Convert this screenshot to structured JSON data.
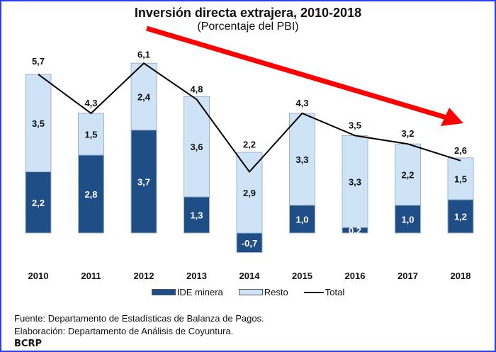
{
  "chart_data": {
    "type": "bar",
    "stacked": true,
    "title": "Inversión directa extrajera, 2010-2018",
    "subtitle": "(Porcentaje del PBI)",
    "categories": [
      "2010",
      "2011",
      "2012",
      "2013",
      "2014",
      "2015",
      "2016",
      "2017",
      "2018"
    ],
    "series": [
      {
        "name": "IDE minera",
        "type": "bar",
        "color": "#1f4e87",
        "values": [
          2.2,
          2.8,
          3.7,
          1.3,
          -0.7,
          1.0,
          0.2,
          1.0,
          1.2
        ],
        "labels": [
          "2,2",
          "2,8",
          "3,7",
          "1,3",
          "-0,7",
          "1,0",
          "0,2",
          "1,0",
          "1,2"
        ]
      },
      {
        "name": "Resto",
        "type": "bar",
        "color": "#cfe3f7",
        "values": [
          3.5,
          1.5,
          2.4,
          3.6,
          2.9,
          3.3,
          3.3,
          2.2,
          1.5
        ],
        "labels": [
          "3,5",
          "1,5",
          "2,4",
          "3,6",
          "2,9",
          "3,3",
          "3,3",
          "2,2",
          "1,5"
        ]
      },
      {
        "name": "Total",
        "type": "line",
        "color": "#000000",
        "values": [
          5.7,
          4.3,
          6.1,
          4.8,
          2.2,
          4.3,
          3.5,
          3.2,
          2.6
        ],
        "labels": [
          "5,7",
          "4,3",
          "6,1",
          "4,8",
          "2,2",
          "4,3",
          "3,5",
          "3,2",
          "2,6"
        ]
      }
    ],
    "annotations": [
      {
        "type": "arrow",
        "color": "#ff0000",
        "direction": "downward trend"
      }
    ],
    "legend_position": "bottom",
    "grid": false,
    "ylim": [
      -0.7,
      6.1
    ]
  },
  "notes": {
    "source": "Fuente: Departamento de Estadísticas de Balanza de Pagos.",
    "elaboration": "Elaboración: Departamento de Análisis de Coyuntura.",
    "brand": "BCRP"
  }
}
